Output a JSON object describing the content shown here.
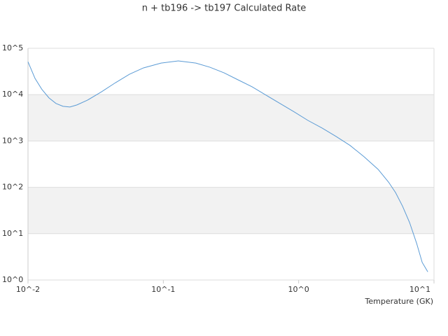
{
  "chart_data": {
    "type": "line",
    "title": "n + tb196 -> tb197 Calculated Rate",
    "x_label": "Temperature (GK)",
    "log_x": true,
    "log_y": true,
    "grid": true,
    "band_color": "#f2f2f2",
    "xlim": [
      0.01,
      10
    ],
    "ylim": [
      1,
      100000
    ],
    "xticks": [
      {
        "value": 0.01,
        "label": "10^-2"
      },
      {
        "value": 0.1,
        "label": "10^-1"
      },
      {
        "value": 1,
        "label": "10^0"
      },
      {
        "value": 10,
        "label": "10^1"
      }
    ],
    "yticks": [
      {
        "value": 1,
        "label": "10^0"
      },
      {
        "value": 10,
        "label": "10^1"
      },
      {
        "value": 100,
        "label": "10^2"
      },
      {
        "value": 1000,
        "label": "10^3"
      },
      {
        "value": 10000,
        "label": "10^4"
      },
      {
        "value": 100000,
        "label": "10^5"
      }
    ],
    "x": [
      0.01,
      0.01127,
      0.01268,
      0.01429,
      0.0161,
      0.01815,
      0.0204,
      0.023,
      0.0275,
      0.0349,
      0.0443,
      0.0562,
      0.0714,
      0.0962,
      0.129,
      0.174,
      0.221,
      0.281,
      0.356,
      0.452,
      0.574,
      0.728,
      0.924,
      1.17,
      1.49,
      1.89,
      2.4,
      3.04,
      3.86,
      4.62,
      5.2,
      5.86,
      6.6,
      7.44,
      8.18,
      9.0
    ],
    "series": [
      {
        "color": "#5b9bd5",
        "values": [
          51000,
          22400,
          12900,
          8500,
          6450,
          5600,
          5400,
          6000,
          7600,
          11500,
          18100,
          27600,
          37800,
          48000,
          53500,
          48000,
          39000,
          29500,
          20900,
          14800,
          9750,
          6450,
          4270,
          2780,
          1900,
          1250,
          800,
          457,
          245,
          129,
          77,
          39,
          17.4,
          6.2,
          2.4,
          1.5
        ]
      }
    ]
  }
}
